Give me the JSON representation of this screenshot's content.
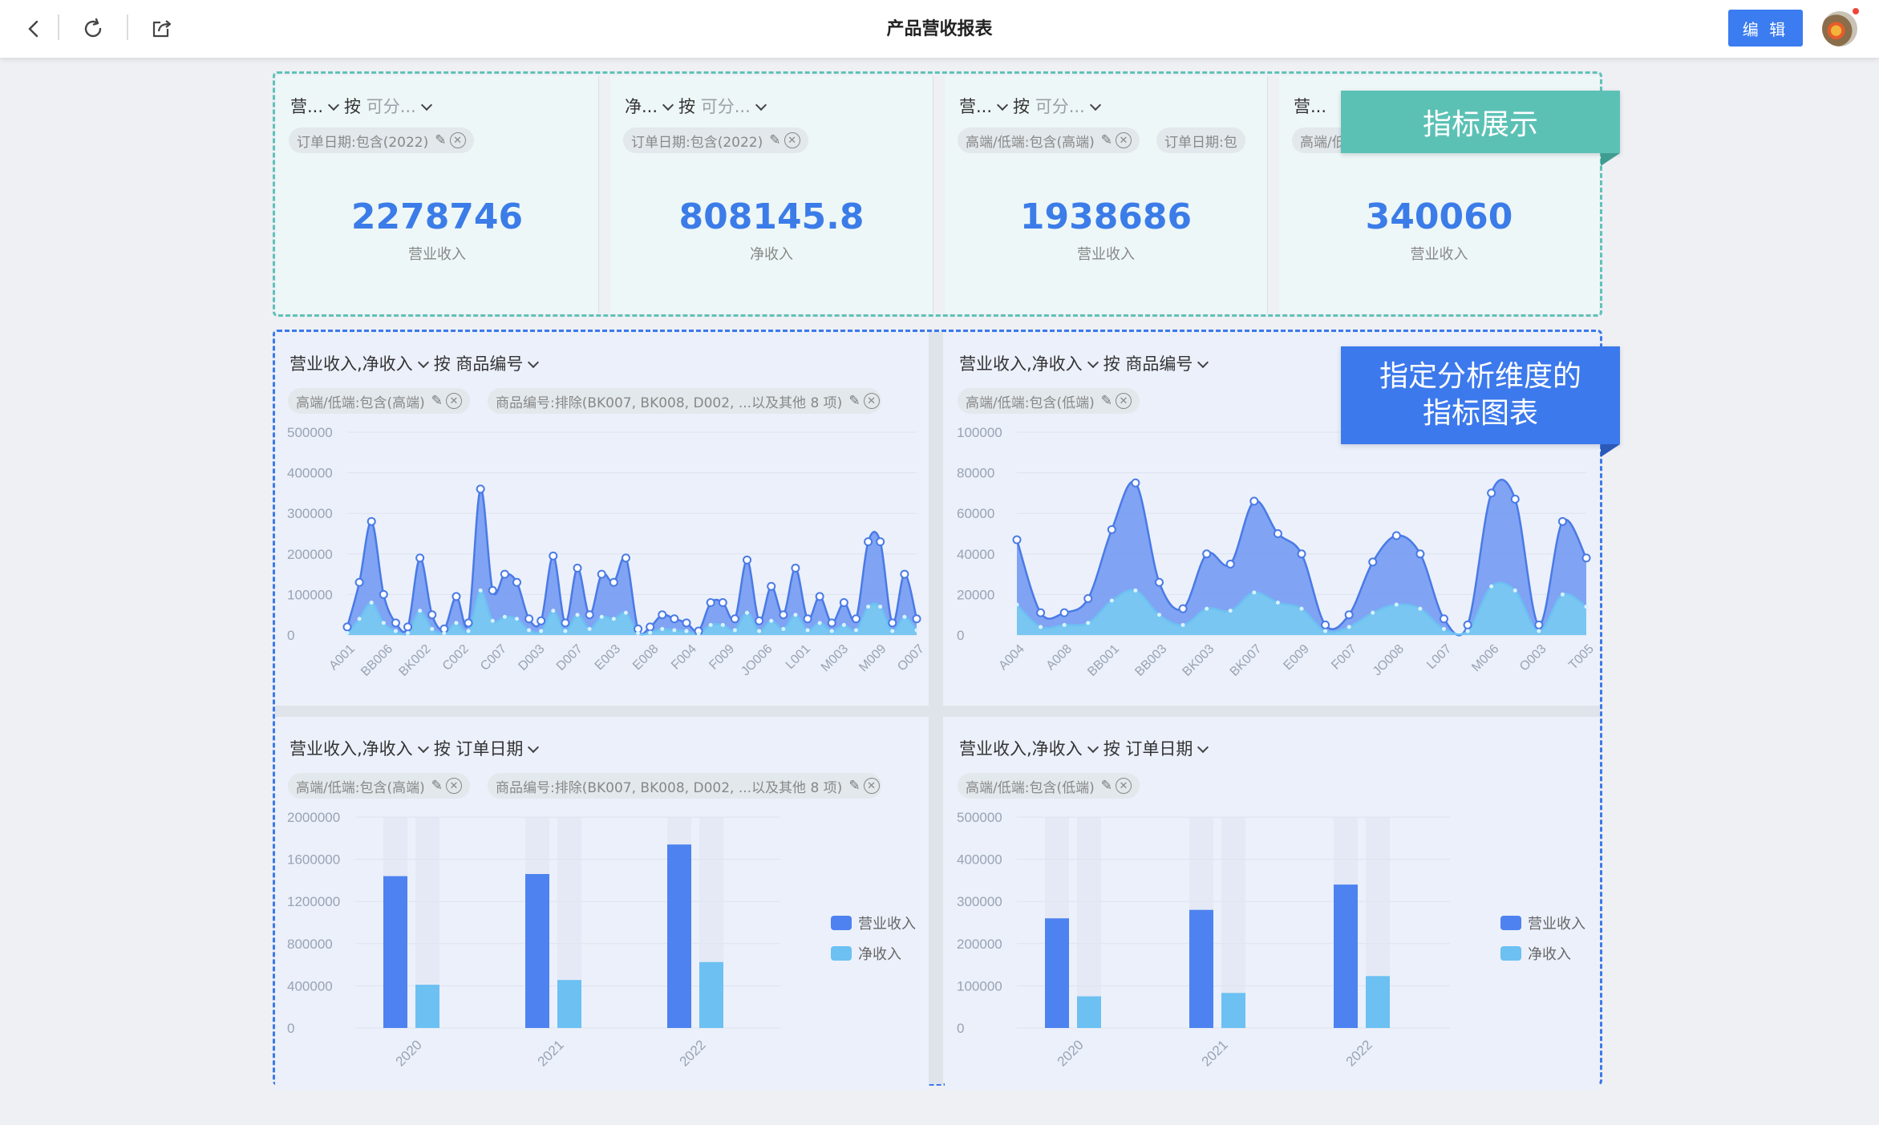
{
  "topbar": {
    "title": "产品营收报表",
    "edit_label": "编 辑"
  },
  "callouts": {
    "kpi": "指标展示",
    "charts_line1": "指定分析维度的",
    "charts_line2": "指标图表"
  },
  "kpis": [
    {
      "metric": "营...",
      "by": "按",
      "dim": "可分...",
      "chips": [
        "订单日期:包含(2022)"
      ],
      "value": "2278746",
      "label": "营业收入"
    },
    {
      "metric": "净...",
      "by": "按",
      "dim": "可分...",
      "chips": [
        "订单日期:包含(2022)"
      ],
      "value": "808145.8",
      "label": "净收入"
    },
    {
      "metric": "营...",
      "by": "按",
      "dim": "可分...",
      "chips": [
        "高端/低端:包含(高端)",
        "订单日期:包"
      ],
      "value": "1938686",
      "label": "营业收入"
    },
    {
      "metric": "营...",
      "by": "",
      "dim": "",
      "chips": [
        "高端/低"
      ],
      "value": "340060",
      "label": "营业收入"
    }
  ],
  "charts": [
    {
      "header_metrics": "营业收入,净收入",
      "by": "按",
      "dim": "商品编号",
      "chips": [
        "高端/低端:包含(高端)",
        "商品编号:排除(BK007, BK008, D002, ...以及其他 8 项)"
      ]
    },
    {
      "header_metrics": "营业收入,净收入",
      "by": "按",
      "dim": "商品编号",
      "chips": [
        "高端/低端:包含(低端)"
      ]
    },
    {
      "header_metrics": "营业收入,净收入",
      "by": "按",
      "dim": "订单日期",
      "chips": [
        "高端/低端:包含(高端)",
        "商品编号:排除(BK007, BK008, D002, ...以及其他 8 项)"
      ]
    },
    {
      "header_metrics": "营业收入,净收入",
      "by": "按",
      "dim": "订单日期",
      "chips": [
        "高端/低端:包含(低端)"
      ]
    }
  ],
  "colors": {
    "series_revenue": "#4d82f0",
    "series_net": "#6cc0f2",
    "teal": "#5cc1b5",
    "blue": "#3c79ec"
  },
  "chart_data": [
    {
      "type": "area",
      "series": [
        {
          "name": "营业收入",
          "values": [
            20000,
            130000,
            280000,
            100000,
            30000,
            20000,
            190000,
            50000,
            15000,
            95000,
            30000,
            360000,
            110000,
            150000,
            130000,
            40000,
            35000,
            195000,
            30000,
            165000,
            50000,
            150000,
            130000,
            190000,
            15000,
            20000,
            50000,
            40000,
            30000,
            10000,
            80000,
            80000,
            40000,
            185000,
            35000,
            120000,
            50000,
            165000,
            40000,
            95000,
            30000,
            80000,
            40000,
            230000,
            230000,
            30000,
            150000,
            40000
          ]
        },
        {
          "name": "净收入",
          "values": [
            5000,
            40000,
            80000,
            30000,
            10000,
            5000,
            60000,
            15000,
            5000,
            30000,
            10000,
            110000,
            35000,
            45000,
            40000,
            12000,
            10000,
            60000,
            10000,
            50000,
            15000,
            45000,
            40000,
            55000,
            5000,
            6000,
            15000,
            12000,
            10000,
            3000,
            25000,
            25000,
            12000,
            55000,
            10000,
            35000,
            15000,
            50000,
            12000,
            30000,
            10000,
            25000,
            12000,
            70000,
            70000,
            10000,
            45000,
            12000
          ]
        }
      ],
      "x_tick_labels": [
        "A001",
        "BB006",
        "BK002",
        "C002",
        "C007",
        "D003",
        "D007",
        "E003",
        "E008",
        "F004",
        "F009",
        "JO006",
        "L001",
        "M003",
        "M009",
        "O007"
      ],
      "y_ticks": [
        "0",
        "100000",
        "200000",
        "300000",
        "400000",
        "500000"
      ],
      "ylim": [
        0,
        500000
      ]
    },
    {
      "type": "area",
      "series": [
        {
          "name": "营业收入",
          "values": [
            47000,
            11000,
            11000,
            18000,
            52000,
            75000,
            26000,
            13000,
            40000,
            35000,
            66000,
            50000,
            40000,
            5000,
            10000,
            36000,
            49000,
            40000,
            8000,
            5000,
            70000,
            67000,
            5000,
            56000,
            38000
          ]
        },
        {
          "name": "净收入",
          "values": [
            15000,
            4000,
            5000,
            6000,
            17000,
            22000,
            10000,
            5000,
            13000,
            12000,
            21000,
            16000,
            13000,
            2000,
            4000,
            11000,
            15000,
            13000,
            3000,
            2000,
            24000,
            22000,
            2000,
            20000,
            14000
          ]
        }
      ],
      "x_tick_labels": [
        "A004",
        "A008",
        "BB001",
        "BB003",
        "BK003",
        "BK007",
        "E009",
        "F007",
        "JO008",
        "L007",
        "M006",
        "O003",
        "T005"
      ],
      "y_ticks": [
        "0",
        "20000",
        "40000",
        "60000",
        "80000",
        "100000"
      ],
      "ylim": [
        0,
        100000
      ]
    },
    {
      "type": "bar",
      "categories": [
        "2020",
        "2021",
        "2022"
      ],
      "series": [
        {
          "name": "营业收入",
          "values": [
            1440000,
            1460000,
            1740000
          ]
        },
        {
          "name": "净收入",
          "values": [
            410000,
            455000,
            625000
          ]
        }
      ],
      "y_ticks": [
        "0",
        "400000",
        "800000",
        "1200000",
        "1600000",
        "2000000"
      ],
      "ylim": [
        0,
        2000000
      ]
    },
    {
      "type": "bar",
      "categories": [
        "2020",
        "2021",
        "2022"
      ],
      "series": [
        {
          "name": "营业收入",
          "values": [
            260000,
            280000,
            340000
          ]
        },
        {
          "name": "净收入",
          "values": [
            75000,
            83000,
            123000
          ]
        }
      ],
      "y_ticks": [
        "0",
        "100000",
        "200000",
        "300000",
        "400000",
        "500000"
      ],
      "ylim": [
        0,
        500000
      ]
    }
  ]
}
